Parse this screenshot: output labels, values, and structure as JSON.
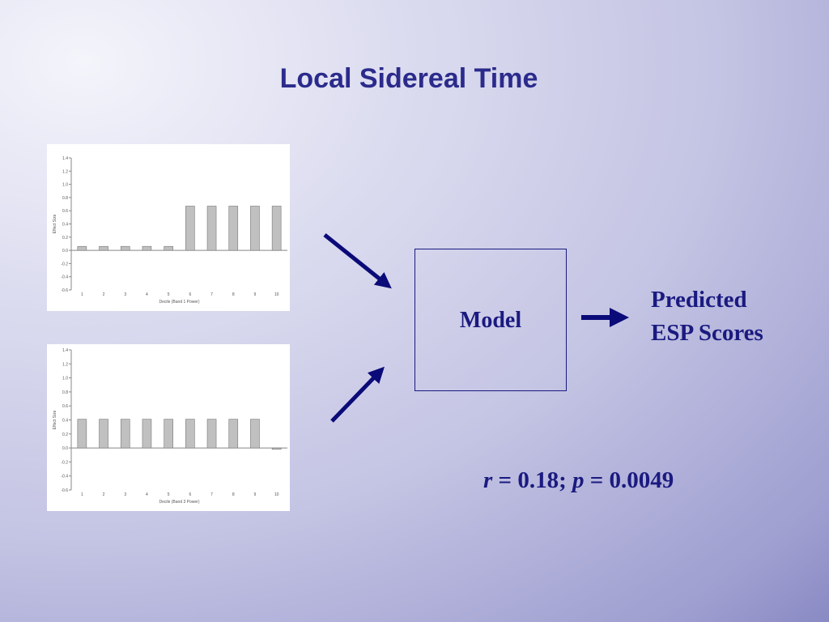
{
  "title": "Local Sidereal Time",
  "model_label": "Model",
  "prediction": {
    "line1": "Predicted",
    "line2": "ESP Scores"
  },
  "stats": {
    "r_symbol": "r",
    "r_text": " = 0.18; ",
    "p_symbol": "p",
    "p_text": " = 0.0049"
  },
  "colors": {
    "title": "#2b2b8c",
    "text": "#1a1a80",
    "arrow": "#0a0a78",
    "bar": "#c0c0c0"
  },
  "chart_data": [
    {
      "type": "bar",
      "categories": [
        "1",
        "2",
        "3",
        "4",
        "5",
        "6",
        "7",
        "8",
        "9",
        "10"
      ],
      "values": [
        0.06,
        0.06,
        0.06,
        0.06,
        0.06,
        0.67,
        0.67,
        0.67,
        0.67,
        0.67
      ],
      "xlabel": "Decile (Band 1 Power)",
      "ylabel": "Effect Size",
      "ylim": [
        -0.6,
        1.4
      ],
      "yticks": [
        "1.4",
        "1.2",
        "1.0",
        "0.8",
        "0.6",
        "0.4",
        "0.2",
        "0.0",
        "-0.2",
        "-0.4",
        "-0.6"
      ],
      "grid": false
    },
    {
      "type": "bar",
      "categories": [
        "1",
        "2",
        "3",
        "4",
        "5",
        "6",
        "7",
        "8",
        "9",
        "10"
      ],
      "values": [
        0.41,
        0.41,
        0.41,
        0.41,
        0.41,
        0.41,
        0.41,
        0.41,
        0.41,
        -0.02
      ],
      "xlabel": "Decile (Band 3 Power)",
      "ylabel": "Effect Size",
      "ylim": [
        -0.6,
        1.4
      ],
      "yticks": [
        "1.4",
        "1.2",
        "1.0",
        "0.8",
        "0.6",
        "0.4",
        "0.2",
        "0.0",
        "-0.2",
        "-0.4",
        "-0.6"
      ],
      "grid": false
    }
  ]
}
